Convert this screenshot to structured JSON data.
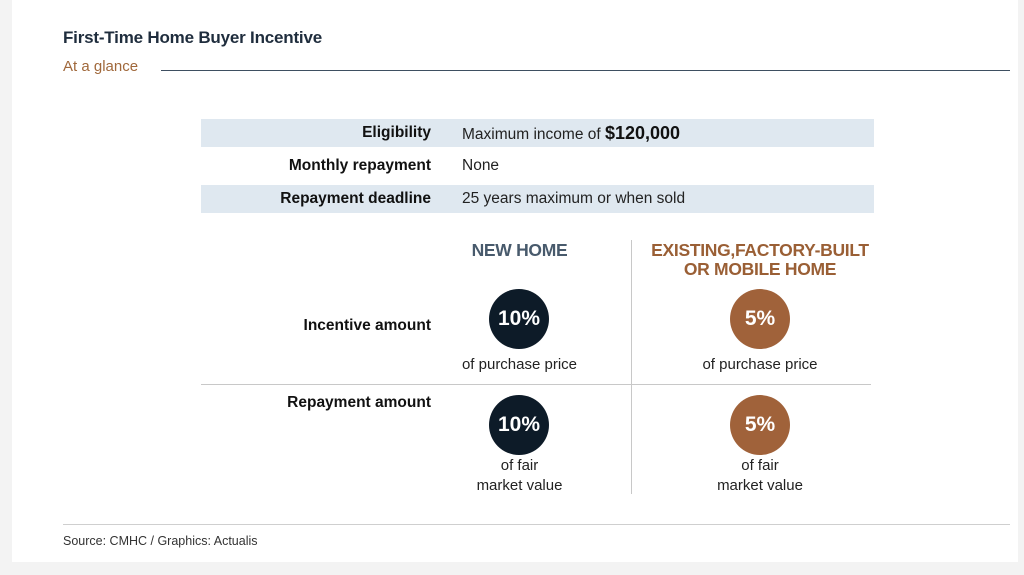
{
  "header": {
    "title": "First-Time Home Buyer Incentive",
    "subtitle": "At a glance"
  },
  "info_rows": [
    {
      "label": "Eligibility",
      "value_prefix": "Maximum income of ",
      "value_bold": "$120,000"
    },
    {
      "label": "Monthly repayment",
      "value": "None"
    },
    {
      "label": "Repayment deadline",
      "value": "25 years maximum or when sold"
    }
  ],
  "columns": {
    "new_home": "NEW HOME",
    "existing_line1": "EXISTING,FACTORY-BUILT",
    "existing_line2": "OR MOBILE HOME"
  },
  "rows": {
    "incentive": {
      "label": "Incentive amount",
      "new_value": "10%",
      "new_caption": "of purchase price",
      "existing_value": "5%",
      "existing_caption": "of purchase price"
    },
    "repayment": {
      "label": "Repayment amount",
      "new_value": "10%",
      "new_caption_line1": "of fair",
      "new_caption_line2": "market value",
      "existing_value": "5%",
      "existing_caption_line1": "of fair",
      "existing_caption_line2": "market value"
    }
  },
  "footer": {
    "source": "Source: CMHC  /  Graphics: Actualis"
  },
  "colors": {
    "new_home_circle": "#0d1b28",
    "existing_circle": "#a0623a",
    "row_shade": "#dfe8f0"
  }
}
